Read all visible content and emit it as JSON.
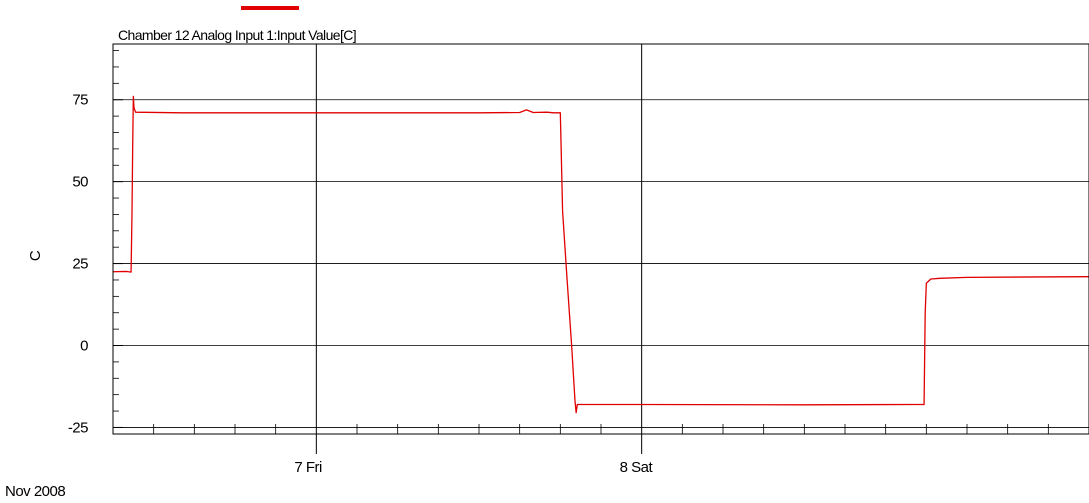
{
  "chart_data": {
    "type": "line",
    "title": "",
    "ylabel": "C",
    "xlabel": "",
    "period_label": "Nov 2008",
    "ylim": [
      -27,
      92
    ],
    "xlim": [
      "2008-11-06T09:00",
      "2008-11-09T09:00"
    ],
    "y_ticks": [
      -25,
      0,
      25,
      50,
      75
    ],
    "x_major_ticks": [
      {
        "value": "2008-11-07T00:00",
        "label": "7 Fri"
      },
      {
        "value": "2008-11-08T00:00",
        "label": "8 Sat"
      }
    ],
    "grid": true,
    "legend": {
      "position": "top-left",
      "entries": [
        "Chamber 12 Analog Input 1:Input Value[C]"
      ]
    },
    "series": [
      {
        "name": "Chamber 12 Analog Input 1:Input Value[C]",
        "color": "#e00000",
        "points": [
          [
            "2008-11-06T09:00",
            22.5
          ],
          [
            "2008-11-06T10:00",
            22.6
          ],
          [
            "2008-11-06T10:20",
            22.4
          ],
          [
            "2008-11-06T10:24",
            40.0
          ],
          [
            "2008-11-06T10:27",
            60.0
          ],
          [
            "2008-11-06T10:30",
            76.0
          ],
          [
            "2008-11-06T10:33",
            72.5
          ],
          [
            "2008-11-06T10:40",
            71.2
          ],
          [
            "2008-11-06T14:00",
            71.0
          ],
          [
            "2008-11-07T00:00",
            71.0
          ],
          [
            "2008-11-07T12:00",
            71.0
          ],
          [
            "2008-11-07T15:00",
            71.1
          ],
          [
            "2008-11-07T15:30",
            71.9
          ],
          [
            "2008-11-07T16:00",
            71.1
          ],
          [
            "2008-11-07T17:00",
            71.2
          ],
          [
            "2008-11-07T17:30",
            71.0
          ],
          [
            "2008-11-07T18:00",
            71.0
          ],
          [
            "2008-11-07T18:10",
            41.0
          ],
          [
            "2008-11-07T18:30",
            20.0
          ],
          [
            "2008-11-07T18:50",
            0.0
          ],
          [
            "2008-11-07T19:05",
            -17.0
          ],
          [
            "2008-11-07T19:10",
            -20.5
          ],
          [
            "2008-11-07T19:15",
            -18.0
          ],
          [
            "2008-11-07T20:00",
            -18.0
          ],
          [
            "2008-11-08T00:00",
            -18.0
          ],
          [
            "2008-11-08T12:00",
            -18.1
          ],
          [
            "2008-11-08T20:00",
            -18.0
          ],
          [
            "2008-11-08T20:50",
            -18.0
          ],
          [
            "2008-11-08T20:55",
            10.0
          ],
          [
            "2008-11-08T21:00",
            19.0
          ],
          [
            "2008-11-08T21:20",
            20.3
          ],
          [
            "2008-11-08T22:00",
            20.5
          ],
          [
            "2008-11-09T00:00",
            20.8
          ],
          [
            "2008-11-09T09:00",
            21.0
          ]
        ]
      }
    ]
  }
}
